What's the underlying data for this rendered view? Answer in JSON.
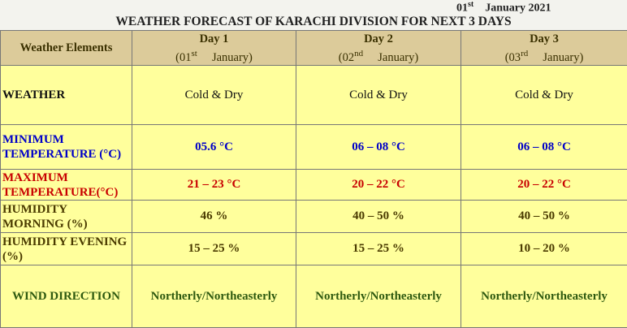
{
  "header": {
    "date_day": "01",
    "date_suffix": "st",
    "date_rest": "January 2021",
    "title": "WEATHER FORECAST OF KARACHI DIVISION FOR NEXT 3 DAYS"
  },
  "table": {
    "header": {
      "label": "Weather Elements",
      "days": [
        {
          "name": "Day 1",
          "date_open": "(01",
          "suffix": "st",
          "month": "January)"
        },
        {
          "name": "Day 2",
          "date_open": "(02",
          "suffix": "nd",
          "month": "January)"
        },
        {
          "name": "Day 3",
          "date_open": "(03",
          "suffix": "rd",
          "month": "January)"
        }
      ]
    },
    "rows": [
      {
        "label": "WEATHER",
        "values": [
          "Cold & Dry",
          "Cold & Dry",
          "Cold & Dry"
        ]
      },
      {
        "label": "MINIMUM TEMPERATURE (°C)",
        "values": [
          "05.6 °C",
          "06 – 08 °C",
          "06 – 08 °C"
        ]
      },
      {
        "label": "MAXIMUM TEMPERATURE(°C)",
        "values": [
          "21 – 23 °C",
          "20 – 22 °C",
          "20 – 22 °C"
        ]
      },
      {
        "label": "HUMIDITY MORNING (%)",
        "values": [
          "46 %",
          "40 – 50 %",
          "40 – 50 %"
        ]
      },
      {
        "label": "HUMIDITY EVENING (%)",
        "values": [
          "15 – 25 %",
          "15 – 25 %",
          "10 – 20 %"
        ]
      },
      {
        "label": "WIND DIRECTION",
        "values": [
          "Northerly/Northeasterly",
          "Northerly/Northeasterly",
          "Northerly/Northeasterly"
        ]
      }
    ]
  }
}
